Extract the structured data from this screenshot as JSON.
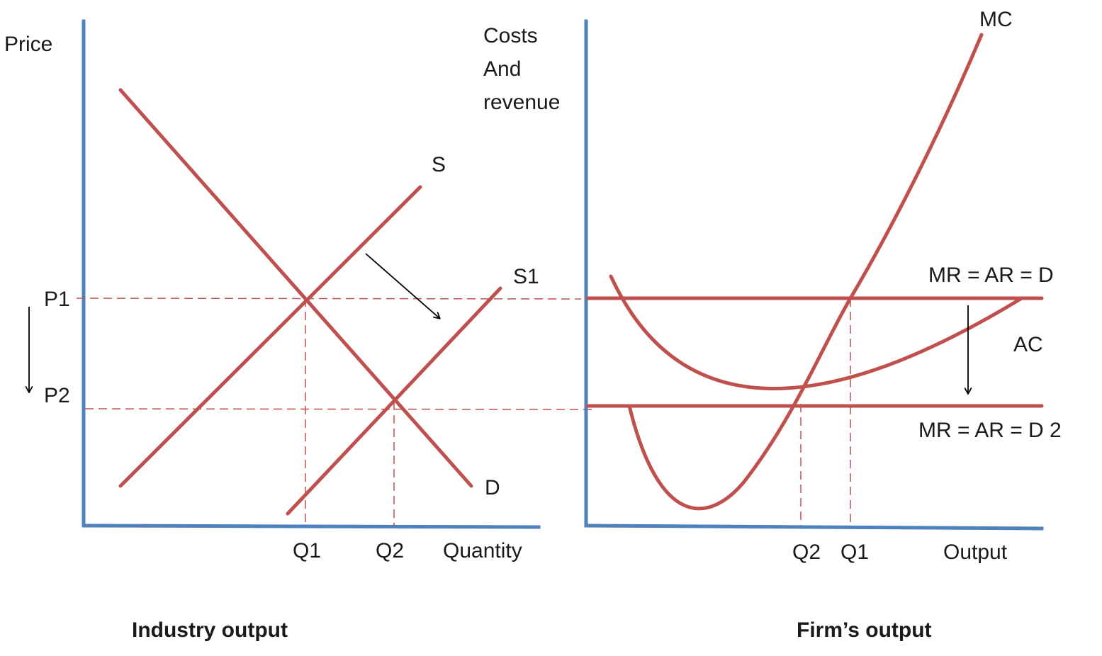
{
  "colors": {
    "axis": "#4F81BD",
    "curve": "#C0504D",
    "arrow": "#000000"
  },
  "industry": {
    "y_axis_label": "Price",
    "x_axis_label": "Quantity",
    "price_labels": [
      "P1",
      "P2"
    ],
    "quantity_labels": [
      "Q1",
      "Q2"
    ],
    "supply_label": "S",
    "supply_shifted_label": "S1",
    "demand_label": "D",
    "caption": "Industry output"
  },
  "firm": {
    "y_axis_label_lines": [
      "Costs",
      "And",
      "revenue"
    ],
    "x_axis_label": "Output",
    "mc_label": "MC",
    "ac_label": "AC",
    "mr1_label": "MR = AR = D",
    "mr2_label": "MR = AR = D 2",
    "quantity_labels": [
      "Q2",
      "Q1"
    ],
    "caption": "Firm’s output"
  }
}
